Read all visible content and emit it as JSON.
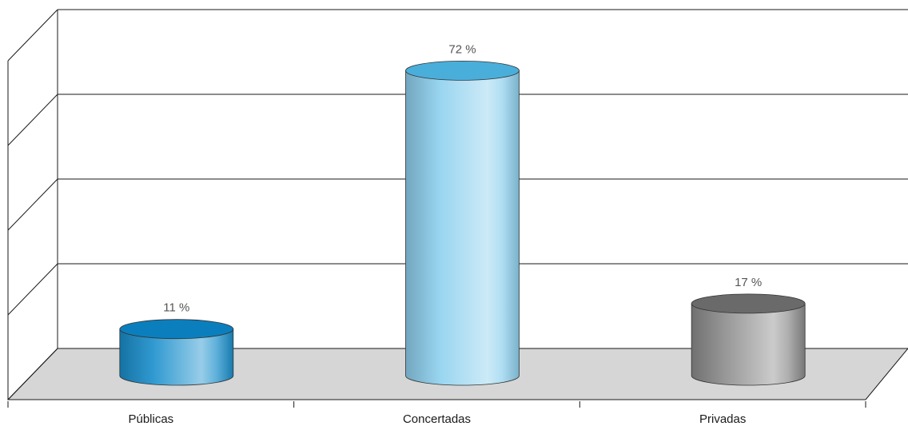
{
  "chart_data": {
    "type": "bar",
    "subtype": "3d-cylinder",
    "title": "",
    "xlabel": "",
    "ylabel": "",
    "ylim": [
      0,
      80
    ],
    "grid": true,
    "legend": "none",
    "categories": [
      "Públicas",
      "Concertadas",
      "Privadas"
    ],
    "values": [
      11,
      72,
      17
    ],
    "data_labels": [
      "11 %",
      "72 %",
      "17 %"
    ],
    "colors": {
      "bars": [
        "#1a8fcc",
        "#8ed0ee",
        "#8c8c8c"
      ],
      "bar_tops": [
        "#0b7fbd",
        "#4aaedb",
        "#6a6a6a"
      ],
      "floor": "#d6d6d6",
      "grid": "#1a1a1a"
    }
  }
}
